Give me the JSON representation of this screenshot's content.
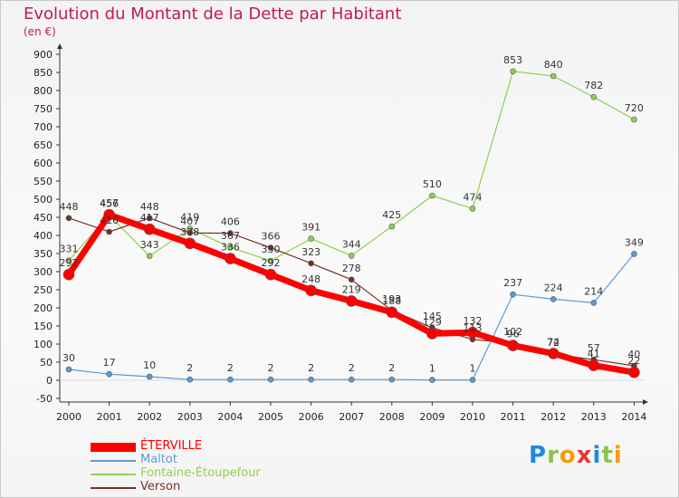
{
  "logo": {
    "text": "Proxiti",
    "letters": [
      {
        "ch": "P",
        "color": "#1e88e5"
      },
      {
        "ch": "r",
        "color": "#8bc34a"
      },
      {
        "ch": "o",
        "color": "#f39c12"
      },
      {
        "ch": "x",
        "color": "#e53935"
      },
      {
        "ch": "i",
        "color": "#1e88e5"
      },
      {
        "ch": "t",
        "color": "#8bc34a"
      },
      {
        "ch": "i",
        "color": "#f39c12"
      }
    ]
  },
  "chart_data": {
    "type": "line",
    "title": "Evolution du Montant de la Dette par Habitant",
    "subtitle": "(en €)",
    "categories": [
      "2000",
      "2001",
      "2002",
      "2003",
      "2004",
      "2005",
      "2006",
      "2007",
      "2008",
      "2009",
      "2010",
      "2011",
      "2012",
      "2013",
      "2014"
    ],
    "ylim": [
      -50,
      900
    ],
    "yticks": [
      -50,
      0,
      50,
      100,
      150,
      200,
      250,
      300,
      350,
      400,
      450,
      500,
      550,
      600,
      650,
      700,
      750,
      800,
      850,
      900
    ],
    "grid": false,
    "legend_position": "bottom-left",
    "series": [
      {
        "name": "ÉTERVILLE",
        "color": "#ff0000",
        "values": [
          292,
          457,
          417,
          378,
          336,
          292,
          248,
          219,
          188,
          129,
          132,
          96,
          74,
          41,
          22
        ]
      },
      {
        "name": "Maltot",
        "color": "#5b9bd5",
        "values": [
          30,
          17,
          10,
          2,
          2,
          2,
          2,
          2,
          2,
          1,
          1,
          237,
          224,
          214,
          349
        ]
      },
      {
        "name": "Fontaine-Étoupefour",
        "color": "#8fd14f",
        "values": [
          331,
          456,
          343,
          419,
          367,
          330,
          391,
          344,
          425,
          510,
          474,
          853,
          840,
          782,
          720
        ]
      },
      {
        "name": "Verson",
        "color": "#7b2d2d",
        "values": [
          448,
          410,
          448,
          407,
          406,
          366,
          323,
          278,
          193,
          145,
          113,
          102,
          72,
          57,
          40
        ]
      }
    ]
  }
}
